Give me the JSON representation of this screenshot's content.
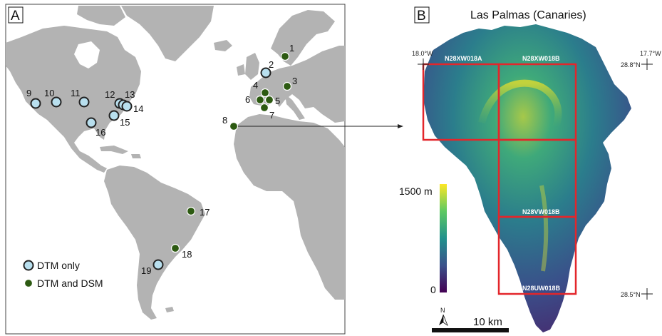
{
  "panel_a": {
    "label": "A",
    "sites": [
      {
        "id": "1",
        "type": "dtm_dsm"
      },
      {
        "id": "2",
        "type": "dtm_only"
      },
      {
        "id": "3",
        "type": "dtm_dsm"
      },
      {
        "id": "4",
        "type": "dtm_dsm"
      },
      {
        "id": "5",
        "type": "dtm_dsm"
      },
      {
        "id": "6",
        "type": "dtm_dsm"
      },
      {
        "id": "7",
        "type": "dtm_dsm"
      },
      {
        "id": "8",
        "type": "dtm_dsm"
      },
      {
        "id": "9",
        "type": "dtm_only"
      },
      {
        "id": "10",
        "type": "dtm_only"
      },
      {
        "id": "11",
        "type": "dtm_only"
      },
      {
        "id": "12",
        "type": "dtm_only"
      },
      {
        "id": "13",
        "type": "dtm_only"
      },
      {
        "id": "14",
        "type": "dtm_only"
      },
      {
        "id": "15",
        "type": "dtm_only"
      },
      {
        "id": "16",
        "type": "dtm_only"
      },
      {
        "id": "17",
        "type": "dtm_dsm"
      },
      {
        "id": "18",
        "type": "dtm_dsm"
      },
      {
        "id": "19",
        "type": "dtm_only"
      }
    ],
    "legend": {
      "dtm_only": "DTM only",
      "dtm_dsm": "DTM and DSM"
    },
    "colors": {
      "land": "#b3b3b3",
      "ocean": "#ffffff",
      "dtm_only_fill": "#b8dfee",
      "dtm_dsm_fill": "#2d5a12"
    }
  },
  "panel_b": {
    "label": "B",
    "title": "Las Palmas (Canaries)",
    "tiles": [
      "N28XW018A",
      "N28XW018B",
      "N28VW018B",
      "N28UW018B"
    ],
    "coords": {
      "west": "18.0°W",
      "east": "17.7°W",
      "north_right": "28.8°N",
      "south_right": "28.5°N"
    },
    "colorbar": {
      "max_label": "1500 m",
      "min_label": "0",
      "max_value": 1500,
      "min_value": 0
    },
    "scale_bar": "10 km",
    "north_label": "N",
    "colors": {
      "tile_outline": "#e3262b",
      "relief_low": "#46085c",
      "relief_mid": "#21918c",
      "relief_high": "#f1e51d"
    }
  }
}
